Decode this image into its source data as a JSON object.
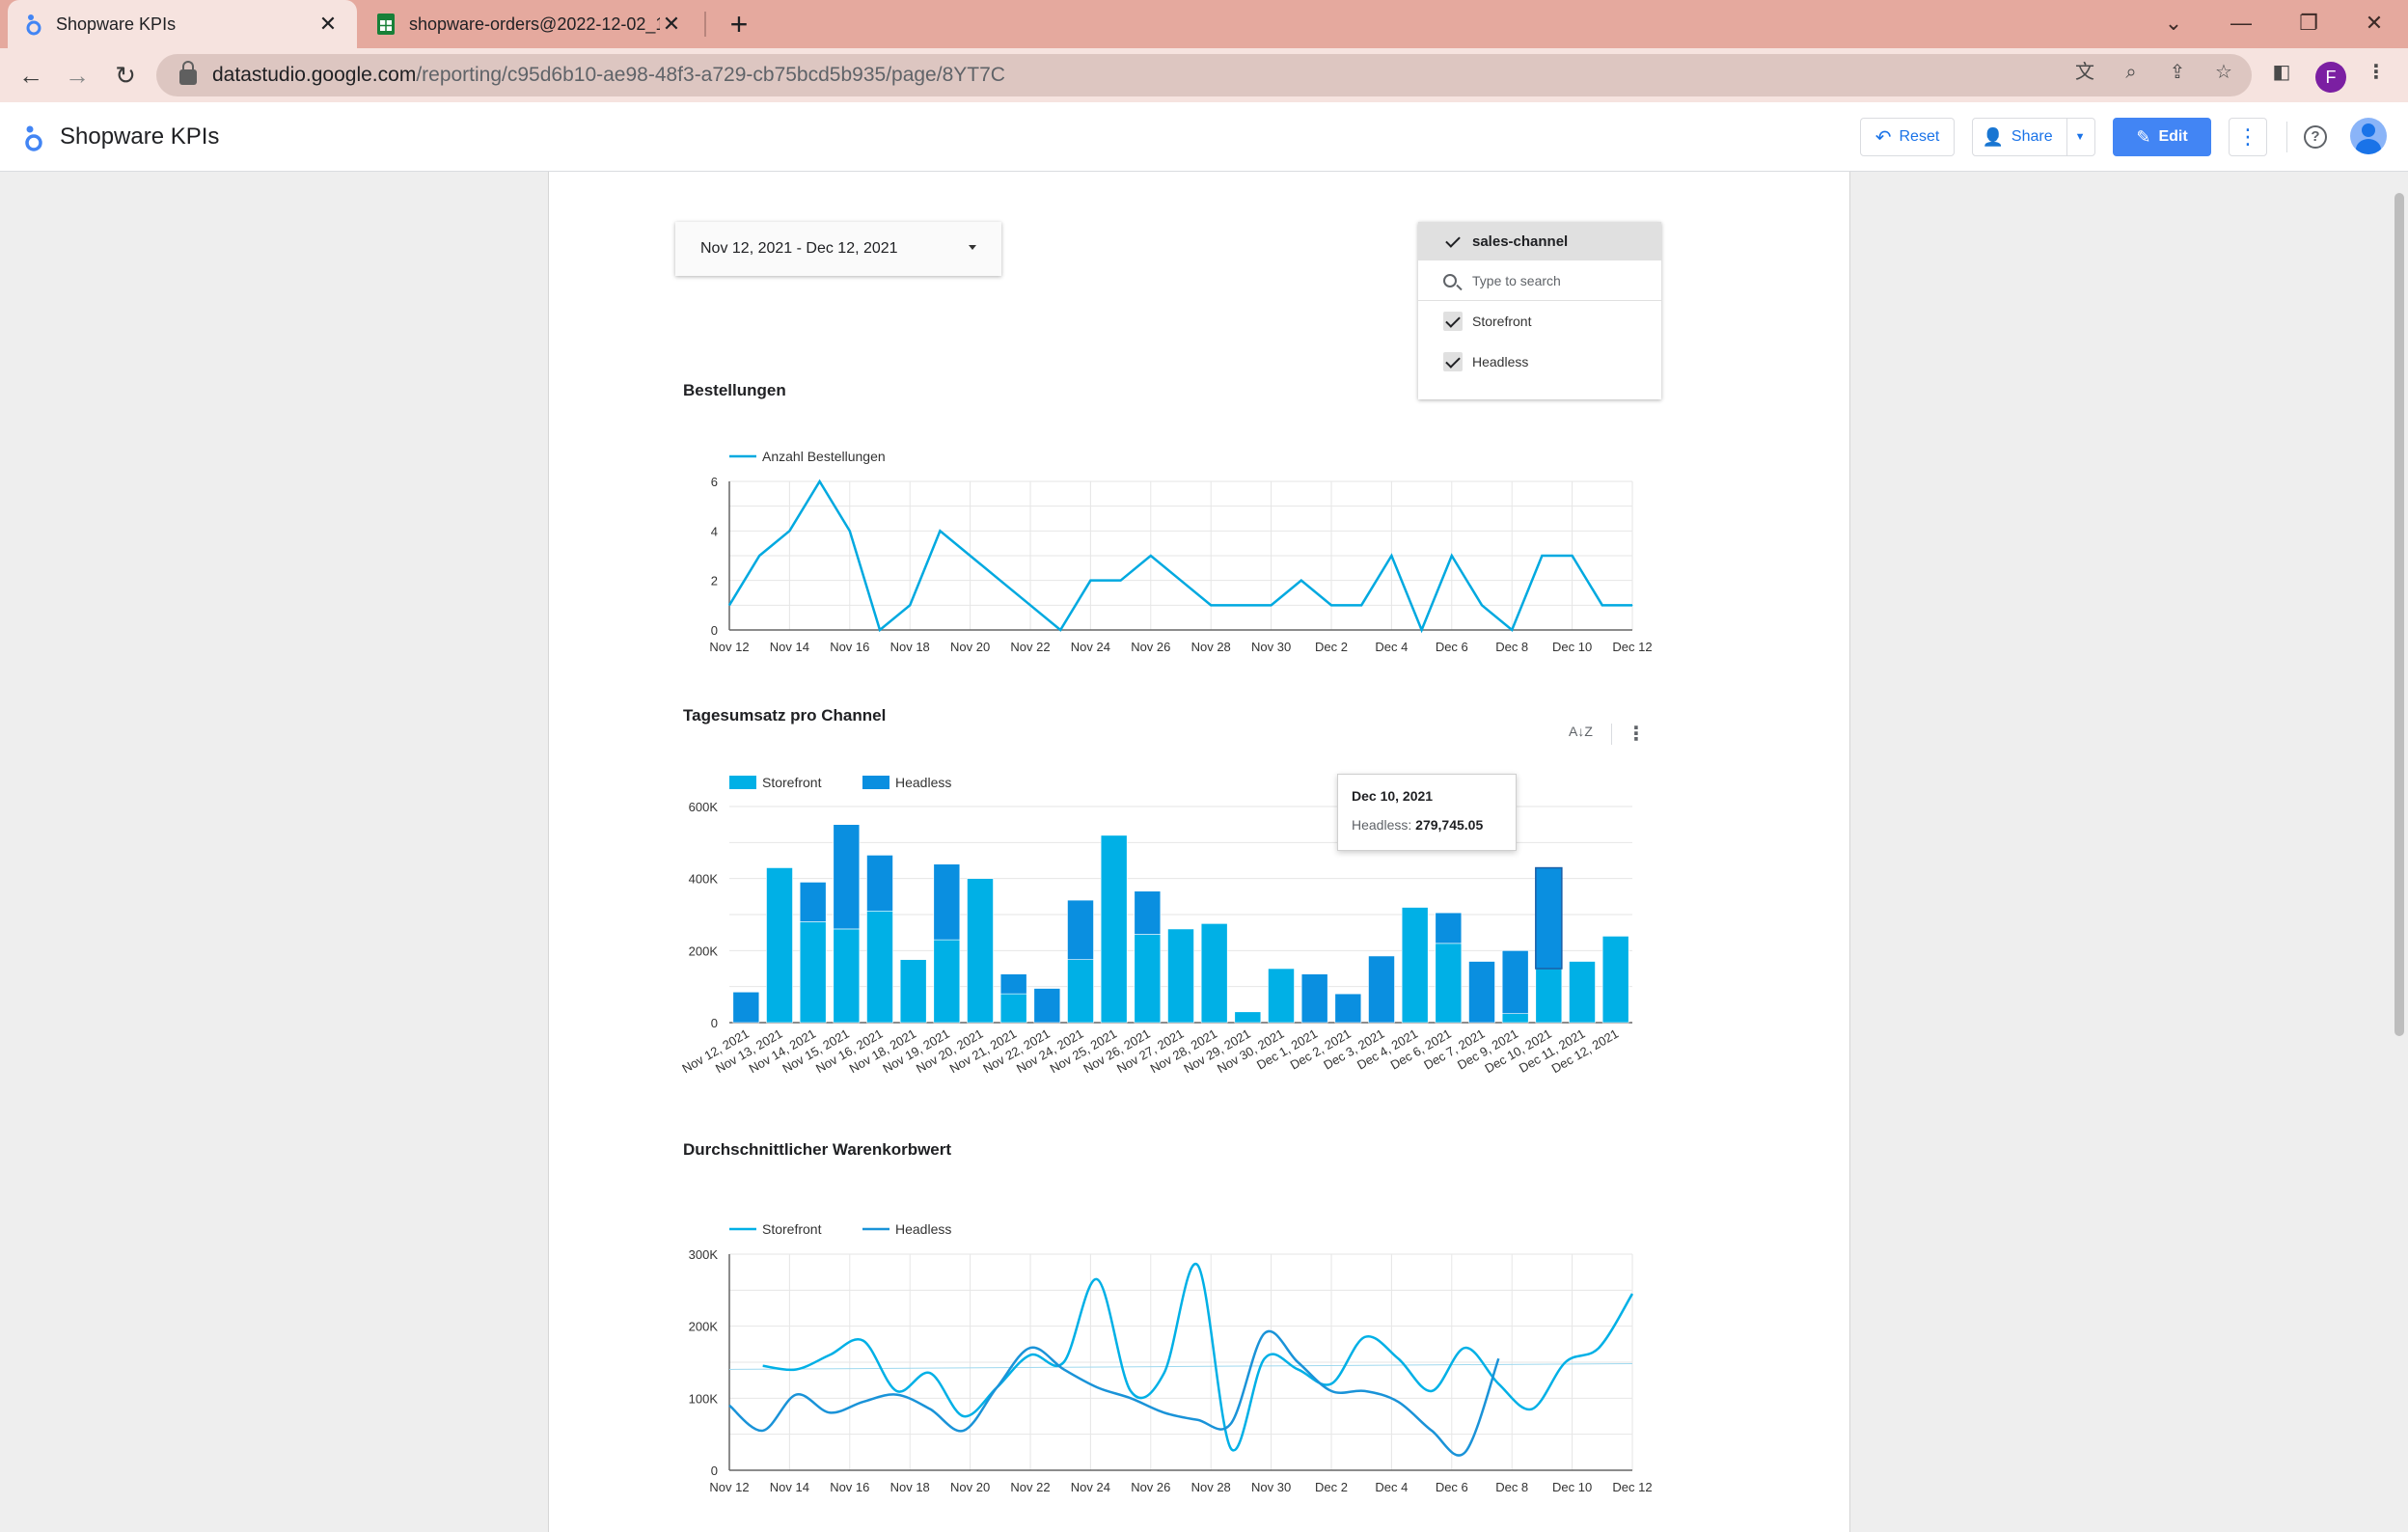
{
  "browser": {
    "tabs": [
      {
        "title": "Shopware KPIs",
        "icon": "looker-studio-icon"
      },
      {
        "title": "shopware-orders@2022-12-02_1",
        "icon": "google-sheets-icon"
      }
    ],
    "url_domain": "datastudio.google.com",
    "url_path": "/reporting/c95d6b10-ae98-48f3-a729-cb75bcd5b935/page/8YT7C",
    "profile_initial": "F"
  },
  "app": {
    "title": "Shopware KPIs",
    "reset_label": "Reset",
    "share_label": "Share",
    "edit_label": "Edit"
  },
  "date_range": {
    "label": "Nov 12, 2021 - Dec 12, 2021"
  },
  "filter": {
    "title": "sales-channel",
    "search_placeholder": "Type to search",
    "options": [
      {
        "label": "Storefront",
        "checked": true
      },
      {
        "label": "Headless",
        "checked": true
      }
    ]
  },
  "tooltip": {
    "date": "Dec 10, 2021",
    "series": "Headless",
    "value": "279,745.05"
  },
  "chart_data": [
    {
      "type": "line",
      "title": "Bestellungen",
      "legend_position": "top-left",
      "series": [
        {
          "name": "Anzahl Bestellungen",
          "color": "#00a9e0",
          "values": [
            1,
            3,
            4,
            6,
            4,
            0,
            1,
            4,
            3,
            2,
            1,
            0,
            2,
            2,
            3,
            2,
            1,
            1,
            1,
            2,
            1,
            1,
            3,
            0,
            3,
            1,
            0,
            3,
            3,
            1,
            1
          ]
        }
      ],
      "x_ticks": [
        "Nov 12",
        "Nov 14",
        "Nov 16",
        "Nov 18",
        "Nov 20",
        "Nov 22",
        "Nov 24",
        "Nov 26",
        "Nov 28",
        "Nov 30",
        "Dec 2",
        "Dec 4",
        "Dec 6",
        "Dec 8",
        "Dec 10",
        "Dec 12"
      ],
      "y_ticks": [
        "0",
        "2",
        "4",
        "6"
      ],
      "ylim": [
        0,
        6
      ],
      "grid": true
    },
    {
      "type": "bar",
      "title": "Tagesumsatz pro Channel",
      "stacked": true,
      "legend_position": "top-left",
      "categories": [
        "Nov 12, 2021",
        "Nov 13, 2021",
        "Nov 14, 2021",
        "Nov 15, 2021",
        "Nov 16, 2021",
        "Nov 18, 2021",
        "Nov 19, 2021",
        "Nov 20, 2021",
        "Nov 21, 2021",
        "Nov 22, 2021",
        "Nov 24, 2021",
        "Nov 25, 2021",
        "Nov 26, 2021",
        "Nov 27, 2021",
        "Nov 28, 2021",
        "Nov 29, 2021",
        "Nov 30, 2021",
        "Dec 1, 2021",
        "Dec 2, 2021",
        "Dec 3, 2021",
        "Dec 4, 2021",
        "Dec 6, 2021",
        "Dec 7, 2021",
        "Dec 9, 2021",
        "Dec 10, 2021",
        "Dec 11, 2021",
        "Dec 12, 2021"
      ],
      "series": [
        {
          "name": "Storefront",
          "color": "#00b0e6",
          "values": [
            0,
            430000,
            280000,
            260000,
            310000,
            175000,
            230000,
            400000,
            80000,
            0,
            175000,
            520000,
            245000,
            260000,
            275000,
            30000,
            150000,
            0,
            0,
            0,
            320000,
            220000,
            0,
            25000,
            150000,
            170000,
            240000
          ]
        },
        {
          "name": "Headless",
          "color": "#0a8fe0",
          "values": [
            85000,
            0,
            110000,
            290000,
            155000,
            0,
            210000,
            0,
            55000,
            95000,
            165000,
            0,
            120000,
            0,
            0,
            0,
            0,
            135000,
            80000,
            185000,
            0,
            85000,
            170000,
            175000,
            279745.05,
            0,
            0
          ]
        }
      ],
      "y_ticks": [
        "0",
        "200K",
        "400K",
        "600K"
      ],
      "ylim": [
        0,
        600000
      ],
      "grid": true
    },
    {
      "type": "line",
      "title": "Durchschnittlicher Warenkorbwert",
      "smooth": true,
      "legend_position": "top-left",
      "series": [
        {
          "name": "Storefront",
          "color": "#00b0e6",
          "values": [
            null,
            145000,
            140000,
            160000,
            180000,
            110000,
            135000,
            75000,
            115000,
            160000,
            150000,
            265000,
            110000,
            135000,
            285000,
            30000,
            155000,
            140000,
            120000,
            185000,
            155000,
            110000,
            170000,
            120000,
            85000,
            150000,
            170000,
            245000
          ]
        },
        {
          "name": "Headless",
          "color": "#1a93d8",
          "values": [
            90000,
            55000,
            105000,
            80000,
            95000,
            105000,
            85000,
            55000,
            115000,
            170000,
            140000,
            115000,
            100000,
            80000,
            70000,
            65000,
            190000,
            150000,
            110000,
            110000,
            95000,
            55000,
            25000,
            155000,
            null,
            null,
            null,
            null
          ]
        }
      ],
      "x_ticks": [
        "Nov 12",
        "Nov 14",
        "Nov 16",
        "Nov 18",
        "Nov 20",
        "Nov 22",
        "Nov 24",
        "Nov 26",
        "Nov 28",
        "Nov 30",
        "Dec 2",
        "Dec 4",
        "Dec 6",
        "Dec 8",
        "Dec 10",
        "Dec 12"
      ],
      "y_ticks": [
        "0",
        "100K",
        "200K",
        "300K"
      ],
      "ylim": [
        0,
        300000
      ],
      "grid": true
    }
  ]
}
